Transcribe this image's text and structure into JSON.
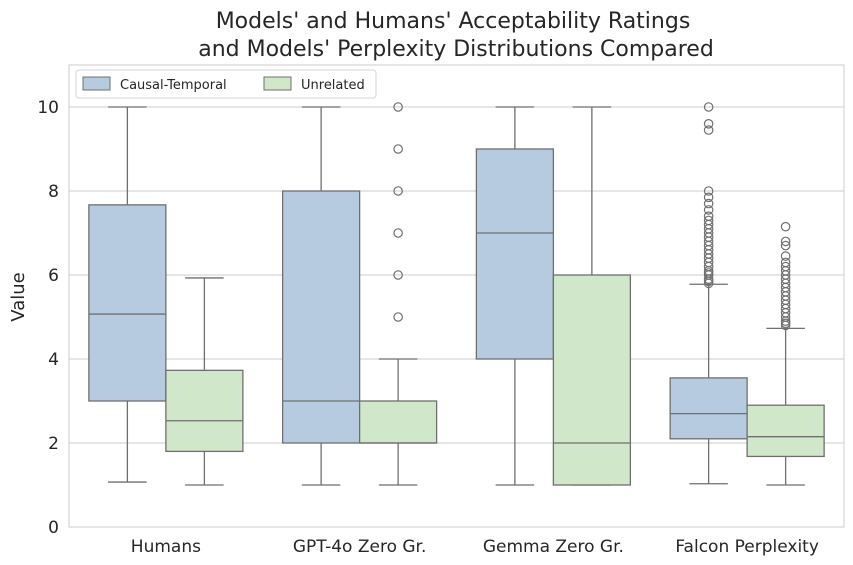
{
  "chart_data": {
    "type": "boxplot",
    "title_lines": [
      "Models' and Humans' Acceptability Ratings",
      "and Models' Perplexity Distributions Compared"
    ],
    "xlabel": "",
    "ylabel": "Value",
    "ylim": [
      0,
      11
    ],
    "yticks": [
      0,
      2,
      4,
      6,
      8,
      10
    ],
    "grid": true,
    "legend_position": "top-left",
    "categories": [
      "Humans",
      "GPT-4o Zero Gr.",
      "Gemma Zero Gr.",
      "Falcon Perplexity"
    ],
    "series": [
      {
        "name": "Causal-Temporal",
        "color": "#b7cbe0",
        "boxes": [
          {
            "whislo": 1.07,
            "q1": 3.0,
            "med": 5.07,
            "q3": 7.67,
            "whishi": 10.0,
            "fliers": []
          },
          {
            "whislo": 1.0,
            "q1": 2.0,
            "med": 3.0,
            "q3": 8.0,
            "whishi": 10.0,
            "fliers": []
          },
          {
            "whislo": 1.0,
            "q1": 4.0,
            "med": 7.0,
            "q3": 9.0,
            "whishi": 10.0,
            "fliers": []
          },
          {
            "whislo": 1.03,
            "q1": 2.1,
            "med": 2.7,
            "q3": 3.55,
            "whishi": 5.78,
            "fliers": [
              5.8,
              5.85,
              5.9,
              6.0,
              6.05,
              6.1,
              6.2,
              6.3,
              6.4,
              6.5,
              6.6,
              6.7,
              6.8,
              6.9,
              7.0,
              7.1,
              7.2,
              7.3,
              7.4,
              7.55,
              7.7,
              7.85,
              8.0,
              9.45,
              9.6,
              10.0
            ]
          }
        ]
      },
      {
        "name": "Unrelated",
        "color": "#d1e7ca",
        "boxes": [
          {
            "whislo": 1.0,
            "q1": 1.8,
            "med": 2.53,
            "q3": 3.73,
            "whishi": 5.93,
            "fliers": []
          },
          {
            "whislo": 1.0,
            "q1": 2.0,
            "med": 2.0,
            "q3": 3.0,
            "whishi": 4.0,
            "fliers": [
              5.0,
              6.0,
              7.0,
              8.0,
              9.0,
              10.0
            ]
          },
          {
            "whislo": 1.0,
            "q1": 1.0,
            "med": 2.0,
            "q3": 6.0,
            "whishi": 10.0,
            "fliers": []
          },
          {
            "whislo": 1.0,
            "q1": 1.68,
            "med": 2.15,
            "q3": 2.9,
            "whishi": 4.73,
            "fliers": [
              4.8,
              4.85,
              4.9,
              5.0,
              5.1,
              5.2,
              5.3,
              5.4,
              5.5,
              5.6,
              5.7,
              5.8,
              5.9,
              6.0,
              6.1,
              6.2,
              6.3,
              6.45,
              6.7,
              6.8,
              7.15
            ]
          }
        ]
      }
    ]
  }
}
